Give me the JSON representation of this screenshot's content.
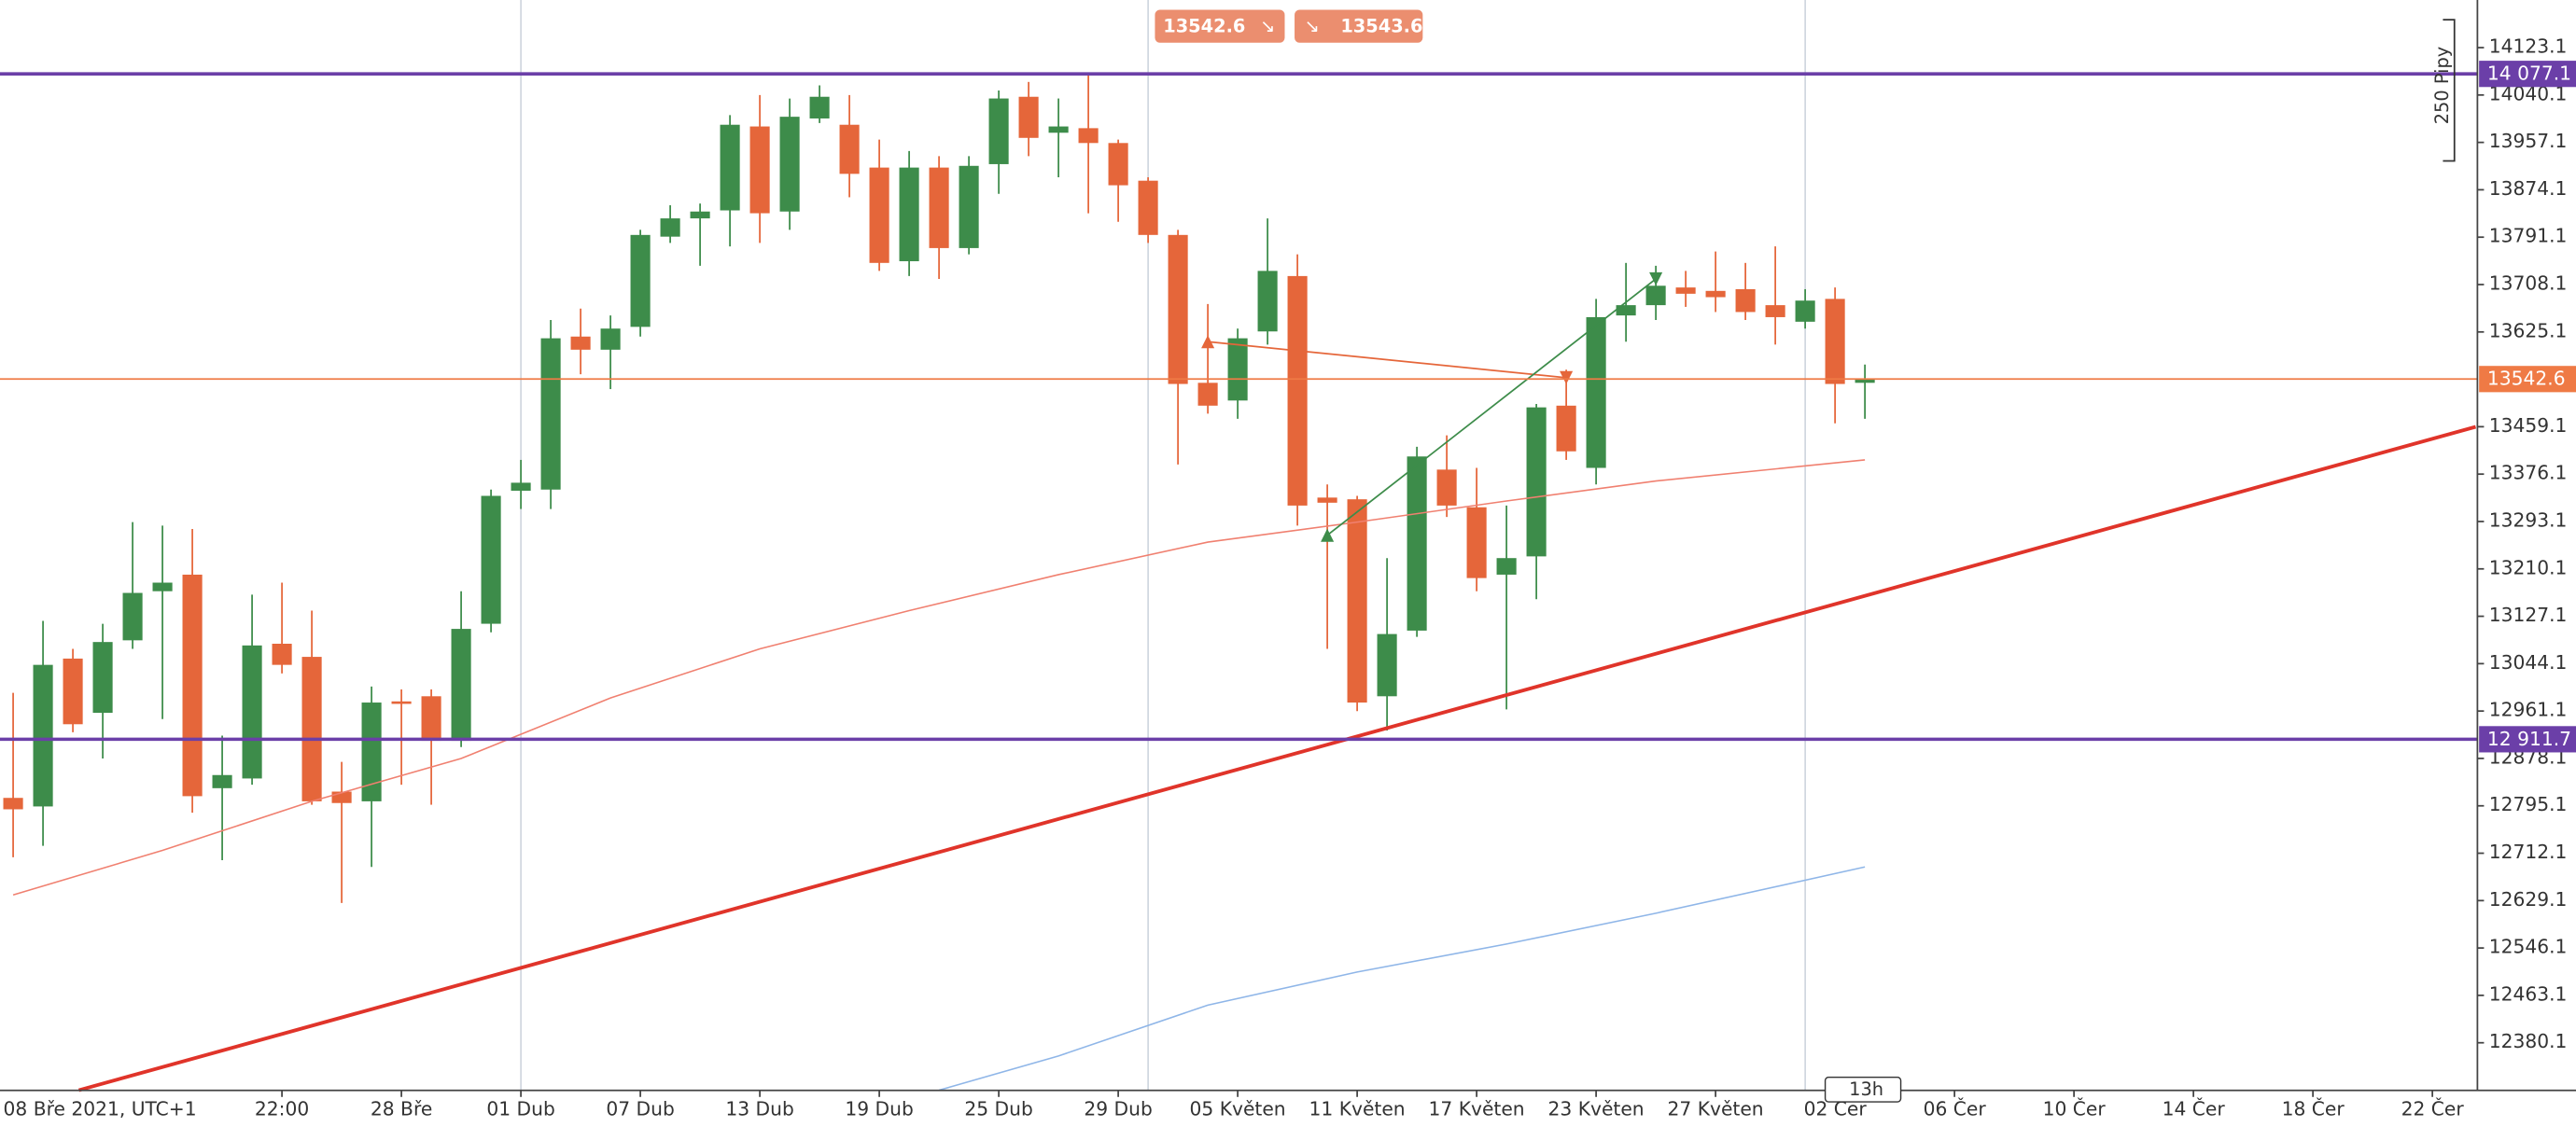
{
  "chart_data": {
    "type": "candlestick",
    "bid": 13542.6,
    "ask": 13543.6,
    "measure_label": "250 Pipy",
    "countdown": "13h",
    "ylim": [
      12296.7,
      14206.5
    ],
    "yticks": [
      14123.1,
      14040.1,
      13957.1,
      13874.1,
      13791.1,
      13708.1,
      13625.1,
      13459.1,
      13376.1,
      13293.1,
      13210.1,
      13127.1,
      13044.1,
      12961.1,
      12878.1,
      12795.1,
      12712.1,
      12629.1,
      12546.1,
      12463.1,
      12380.1
    ],
    "categories": [
      "08 Bře 2021, UTC+1",
      null,
      null,
      null,
      null,
      null,
      null,
      null,
      null,
      "22:00",
      null,
      null,
      null,
      "28 Bře",
      null,
      null,
      null,
      "01 Dub",
      null,
      null,
      null,
      "07 Dub",
      null,
      null,
      null,
      "13 Dub",
      null,
      null,
      null,
      "19 Dub",
      null,
      null,
      null,
      "25 Dub",
      null,
      null,
      null,
      "29 Dub",
      null,
      null,
      null,
      "05 Květen",
      null,
      null,
      null,
      "11 Květen",
      null,
      null,
      null,
      "17 Květen",
      null,
      null,
      null,
      "23 Květen",
      null,
      null,
      null,
      "27 Květen",
      null,
      null,
      null,
      "02 Čer",
      null,
      null,
      null,
      "06 Čer",
      null,
      null,
      null,
      "10 Čer",
      null,
      null,
      null,
      "14 Čer",
      null,
      null,
      null,
      "18 Čer",
      null,
      null,
      null,
      "22 Čer"
    ],
    "up_color": "#3d8c4a",
    "down_color": "#e5663a",
    "open": [
      12809,
      12794,
      13053,
      12958,
      13085,
      13171,
      13200,
      12826,
      12843,
      13079,
      13056,
      12820,
      12803,
      12978,
      12987,
      12909,
      13114,
      13347,
      13349,
      13617,
      13594,
      13634,
      13792,
      13824,
      13838,
      13985,
      13836,
      13999,
      13988,
      13913,
      13749,
      13913,
      13772,
      13919,
      14037,
      13974,
      13982,
      13956,
      13890,
      13795,
      13536,
      13505,
      13626,
      13723,
      13335,
      13332,
      12987,
      13102,
      13384,
      13318,
      13200,
      13232,
      13496,
      13387,
      13654,
      13672,
      13703,
      13697,
      13700,
      13672,
      13643,
      13683,
      13536,
      null,
      null,
      null,
      null,
      null,
      null,
      null,
      null,
      null,
      null,
      null,
      null,
      null,
      null,
      null,
      null,
      null,
      null,
      null
    ],
    "high": [
      12993,
      13119,
      13070,
      13114,
      13292,
      13286,
      13280,
      12918,
      13165,
      13186,
      13137,
      12872,
      13004,
      12999,
      12999,
      13171,
      13349,
      13401,
      13646,
      13666,
      13654,
      13804,
      13847,
      13850,
      14005,
      14040,
      14034,
      14057,
      14040,
      13962,
      13942,
      13933,
      13933,
      14048,
      14063,
      14034,
      14077,
      13962,
      13896,
      13804,
      13674,
      13631,
      13824,
      13761,
      13358,
      13338,
      13229,
      13424,
      13444,
      13387,
      13321,
      13499,
      13559,
      13683,
      13746,
      13741,
      13732,
      13766,
      13746,
      13775,
      13700,
      13703,
      13568,
      null,
      null,
      null,
      null,
      null,
      null,
      null,
      null,
      null,
      null,
      null,
      null,
      null,
      null,
      null,
      null,
      null,
      null,
      null
    ],
    "low": [
      12705,
      12725,
      12924,
      12878,
      13070,
      12947,
      12783,
      12700,
      12832,
      13027,
      12797,
      12625,
      12688,
      12832,
      12797,
      12898,
      13099,
      13315,
      13315,
      13551,
      13525,
      13617,
      13781,
      13741,
      13775,
      13781,
      13804,
      13991,
      13861,
      13732,
      13723,
      13718,
      13761,
      13867,
      13933,
      13896,
      13833,
      13818,
      13781,
      13393,
      13482,
      13473,
      13603,
      13286,
      13070,
      12961,
      12927,
      13091,
      13301,
      13171,
      12964,
      13157,
      13401,
      13358,
      13608,
      13646,
      13669,
      13660,
      13646,
      13603,
      13631,
      13465,
      13473,
      null,
      null,
      null,
      null,
      null,
      null,
      null,
      null,
      null,
      null,
      null,
      null,
      null,
      null,
      null,
      null,
      null,
      null,
      null
    ],
    "close": [
      12789,
      13042,
      12938,
      13082,
      13168,
      13186,
      12812,
      12849,
      13076,
      13042,
      12803,
      12800,
      12976,
      12976,
      12909,
      13105,
      13338,
      13361,
      13614,
      13594,
      13631,
      13795,
      13824,
      13836,
      13988,
      13833,
      14002,
      14037,
      13902,
      13746,
      13913,
      13772,
      13916,
      14034,
      13965,
      13985,
      13956,
      13882,
      13795,
      13534,
      13496,
      13614,
      13732,
      13321,
      13326,
      12976,
      13096,
      13407,
      13321,
      13194,
      13229,
      13493,
      13416,
      13651,
      13672,
      13706,
      13692,
      13686,
      13660,
      13651,
      13680,
      13534,
      13542.6,
      null,
      null,
      null,
      null,
      null,
      null,
      null,
      null,
      null,
      null,
      null,
      null,
      null,
      null,
      null,
      null,
      null,
      null,
      null
    ],
    "lines": [
      {
        "color": "#f08070",
        "width": 0.9,
        "x": [
          0,
          5,
          10,
          15,
          20,
          25,
          30,
          35,
          40,
          45,
          50,
          55,
          62
        ],
        "values": [
          12639,
          12717,
          12803,
          12878,
          12984,
          13070,
          13137,
          13200,
          13257,
          13292,
          13329,
          13364,
          13401
        ]
      },
      {
        "color": "#8fb6e8",
        "width": 0.9,
        "x": [
          31,
          35,
          40,
          45,
          50,
          55,
          62
        ],
        "values": [
          12297,
          12357,
          12446,
          12504,
          12553,
          12607,
          12688
        ]
      },
      {
        "color": "#e0342a",
        "width": 2.2,
        "x": [
          2.2,
          82.45
        ],
        "values": [
          12297,
          13459
        ]
      },
      {
        "color": "#e5663a",
        "width": 1,
        "x": [
          40,
          52
        ],
        "values": [
          13608,
          13545
        ],
        "arrow": true
      },
      {
        "color": "#3d8c4a",
        "width": 1,
        "x": [
          44,
          55
        ],
        "values": [
          13269,
          13718
        ],
        "arrow": true
      }
    ],
    "levels": [
      {
        "value": 14077.1,
        "label": "14 077.1",
        "color": "#6b3fa8"
      },
      {
        "value": 12911.7,
        "label": "12 911.7",
        "color": "#6b3fa8"
      },
      {
        "value": 13542.6,
        "color": "#ef7a45"
      }
    ],
    "separators": [
      17,
      38,
      60
    ]
  }
}
